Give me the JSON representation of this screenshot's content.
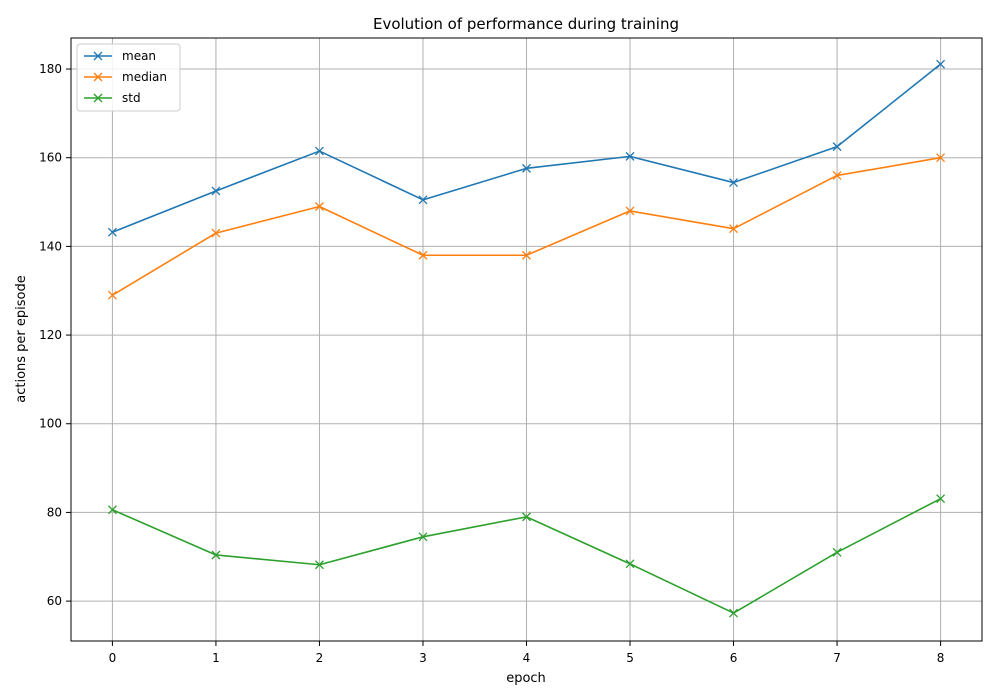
{
  "chart_data": {
    "type": "line",
    "title": "Evolution of performance during training",
    "xlabel": "epoch",
    "ylabel": "actions per episode",
    "x": [
      0,
      1,
      2,
      3,
      4,
      5,
      6,
      7,
      8
    ],
    "xlim": [
      -0.4,
      8.4
    ],
    "ylim": [
      51,
      187
    ],
    "xticks": [
      0,
      1,
      2,
      3,
      4,
      5,
      6,
      7,
      8
    ],
    "yticks": [
      60,
      80,
      100,
      120,
      140,
      160,
      180
    ],
    "grid": true,
    "legend_position": "upper-left",
    "marker": "x",
    "series": [
      {
        "name": "mean",
        "color": "#1f77b4",
        "values": [
          143.2,
          152.5,
          161.5,
          150.5,
          157.6,
          160.3,
          154.4,
          162.5,
          181.1
        ]
      },
      {
        "name": "median",
        "color": "#ff7f0e",
        "values": [
          129,
          143,
          149,
          138,
          138,
          148,
          144,
          156,
          160
        ]
      },
      {
        "name": "std",
        "color": "#2ca02c",
        "values": [
          80.6,
          70.4,
          68.2,
          74.5,
          79,
          68.4,
          57.3,
          71,
          83.1
        ]
      }
    ]
  }
}
